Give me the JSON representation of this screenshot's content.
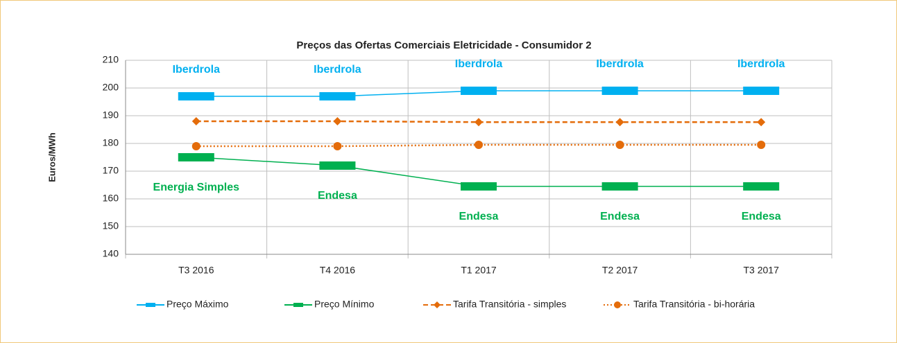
{
  "chart_data": {
    "type": "line",
    "title": "Preços das Ofertas Comerciais Eletricidade - Consumidor 2",
    "y_label": "Euros/MWh",
    "categories": [
      "T3 2016",
      "T4 2016",
      "T1 2017",
      "T2 2017",
      "T3 2017"
    ],
    "series": [
      {
        "name": "Preço Máximo",
        "color": "#00b0f0",
        "line": "solid",
        "marker": "bar",
        "values": [
          197,
          197,
          199,
          199,
          199
        ],
        "point_labels": [
          "Iberdrola",
          "Iberdrola",
          "Iberdrola",
          "Iberdrola",
          "Iberdrola"
        ],
        "label_side": "above"
      },
      {
        "name": "Preço Mínimo",
        "color": "#00b050",
        "line": "solid",
        "marker": "bar",
        "values": [
          175,
          172,
          164.5,
          164.5,
          164.5
        ],
        "point_labels": [
          "Energia Simples",
          "Endesa",
          "Endesa",
          "Endesa",
          "Endesa"
        ],
        "label_side": "below"
      },
      {
        "name": "Tarifa Transitória - simples",
        "color": "#e46c0a",
        "line": "dashed",
        "marker": "diamond",
        "values": [
          188,
          188,
          187.7,
          187.7,
          187.7
        ]
      },
      {
        "name": "Tarifa Transitória - bi-horária",
        "color": "#e46c0a",
        "line": "dotted",
        "marker": "circle",
        "values": [
          179,
          179,
          179.5,
          179.5,
          179.5
        ]
      }
    ],
    "ylim": [
      140,
      210
    ],
    "yticks": [
      140,
      150,
      160,
      170,
      180,
      190,
      200,
      210
    ],
    "grid": true
  }
}
